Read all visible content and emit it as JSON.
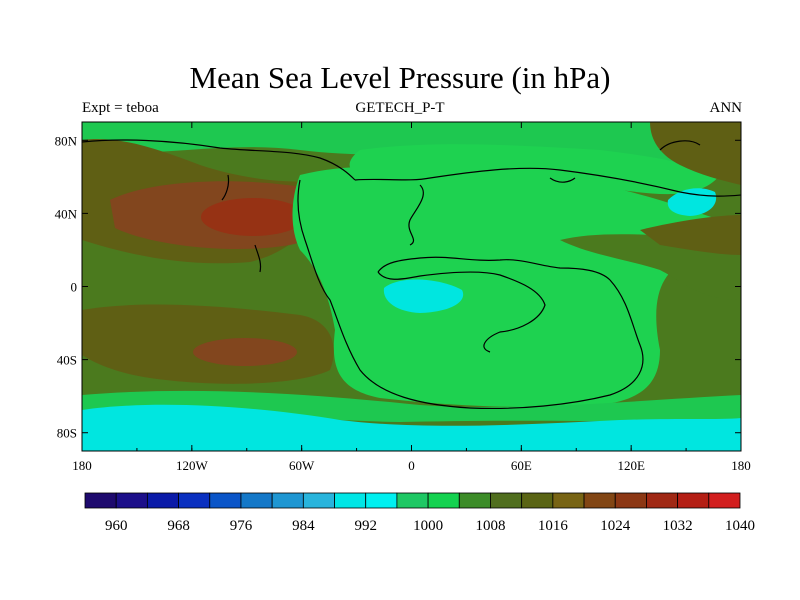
{
  "title": "Mean Sea Level Pressure (in hPa)",
  "subtitle_left": "Expt = teboa",
  "subtitle_center": "GETECH_P-T",
  "subtitle_right": "ANN",
  "map": {
    "lon_ticks": [
      "180",
      "120W",
      "60W",
      "0",
      "60E",
      "120E",
      "180"
    ],
    "lat_ticks": [
      "80N",
      "40N",
      "0",
      "40S",
      "80S"
    ]
  },
  "colorbar": {
    "labels": [
      "960",
      "968",
      "976",
      "984",
      "992",
      "1000",
      "1008",
      "1016",
      "1024",
      "1032",
      "1040"
    ],
    "colors": [
      "#1e0a6e",
      "#1c0f8a",
      "#0a1aa8",
      "#0a30c0",
      "#0a55c8",
      "#1478c8",
      "#1e96d2",
      "#28b4dc",
      "#00e6e6",
      "#00f0f0",
      "#1ec864",
      "#14d250",
      "#3c8c28",
      "#506e1e",
      "#5a6414",
      "#786414",
      "#824614",
      "#8c3714",
      "#a02814",
      "#b41e14",
      "#d21e1e"
    ]
  },
  "colors": {
    "land_green": "#1ed250",
    "light_green": "#19c85a",
    "olive": "#4b7a1e",
    "dark_olive": "#5f5f14",
    "brown": "#82461e",
    "red_brown": "#963214",
    "cyan": "#00e6e0"
  }
}
